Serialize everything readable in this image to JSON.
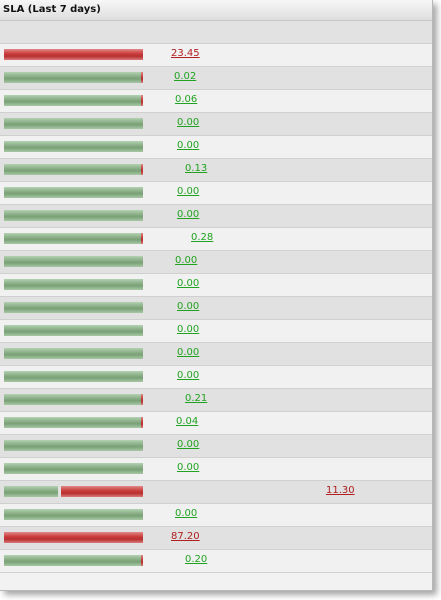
{
  "header": {
    "title": "SLA (Last 7 days)"
  },
  "colors": {
    "good": "#21a321",
    "bad": "#b02020"
  },
  "rows": [
    {
      "value": "23.45",
      "status": "bad",
      "green_pct": 0,
      "red_pct": 100
    },
    {
      "value": "0.02",
      "status": "good",
      "green_pct": 99.98,
      "red_pct": 0.02
    },
    {
      "value": "0.06",
      "status": "good",
      "green_pct": 99.94,
      "red_pct": 0.06
    },
    {
      "value": "0.00",
      "status": "good",
      "green_pct": 100,
      "red_pct": 0
    },
    {
      "value": "0.00",
      "status": "good",
      "green_pct": 100,
      "red_pct": 0
    },
    {
      "value": "0.13",
      "status": "good",
      "green_pct": 99.87,
      "red_pct": 0.13
    },
    {
      "value": "0.00",
      "status": "good",
      "green_pct": 100,
      "red_pct": 0
    },
    {
      "value": "0.00",
      "status": "good",
      "green_pct": 100,
      "red_pct": 0
    },
    {
      "value": "0.28",
      "status": "good",
      "green_pct": 99.72,
      "red_pct": 0.28
    },
    {
      "value": "0.00",
      "status": "good",
      "green_pct": 100,
      "red_pct": 0
    },
    {
      "value": "0.00",
      "status": "good",
      "green_pct": 100,
      "red_pct": 0
    },
    {
      "value": "0.00",
      "status": "good",
      "green_pct": 100,
      "red_pct": 0
    },
    {
      "value": "0.00",
      "status": "good",
      "green_pct": 100,
      "red_pct": 0
    },
    {
      "value": "0.00",
      "status": "good",
      "green_pct": 100,
      "red_pct": 0
    },
    {
      "value": "0.00",
      "status": "good",
      "green_pct": 100,
      "red_pct": 0
    },
    {
      "value": "0.21",
      "status": "good",
      "green_pct": 99.79,
      "red_pct": 0.21
    },
    {
      "value": "0.04",
      "status": "good",
      "green_pct": 99.96,
      "red_pct": 0.04
    },
    {
      "value": "0.00",
      "status": "good",
      "green_pct": 100,
      "red_pct": 0
    },
    {
      "value": "0.00",
      "status": "good",
      "green_pct": 100,
      "red_pct": 0
    },
    {
      "value": "11.30",
      "status": "bad",
      "green_pct": 40,
      "red_pct": 60
    },
    {
      "value": "0.00",
      "status": "good",
      "green_pct": 100,
      "red_pct": 0
    },
    {
      "value": "87.20",
      "status": "bad",
      "green_pct": 0,
      "red_pct": 100
    },
    {
      "value": "0.20",
      "status": "good",
      "green_pct": 99.8,
      "red_pct": 0.2
    }
  ]
}
